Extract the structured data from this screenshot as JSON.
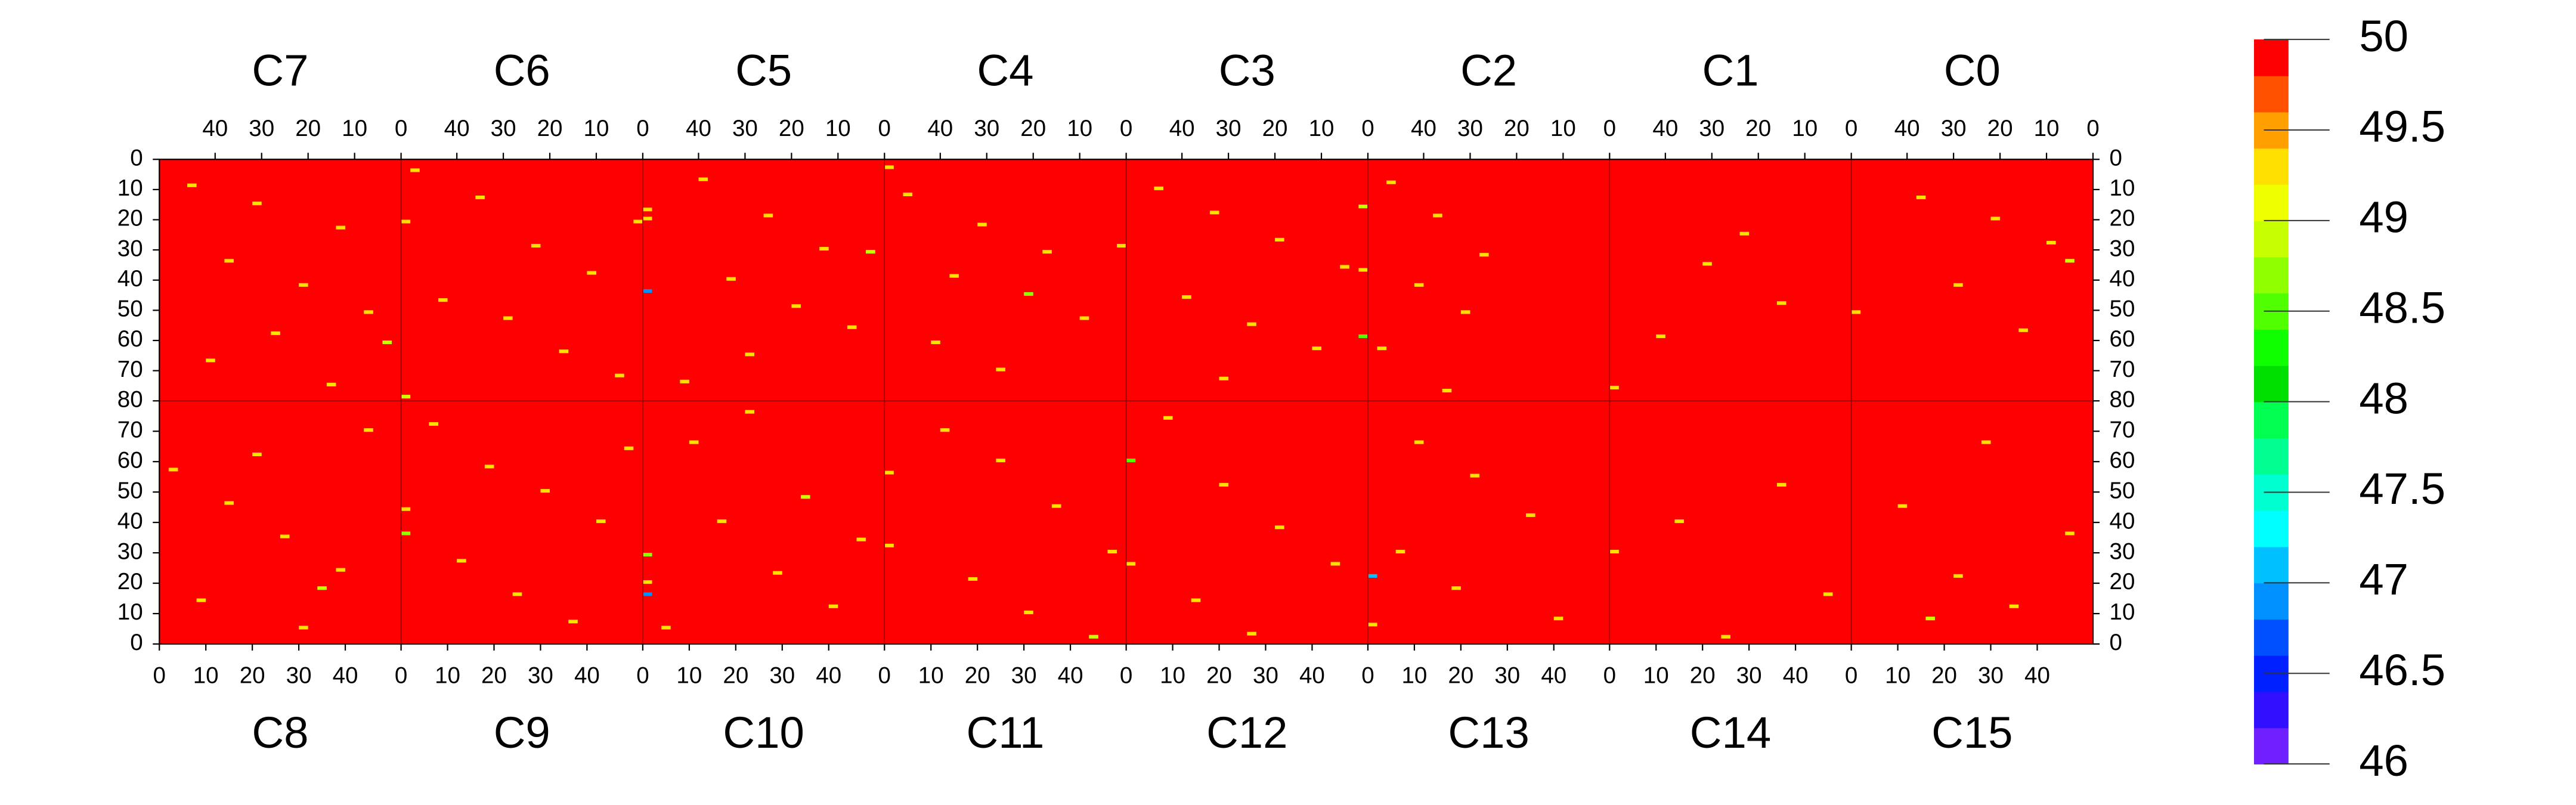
{
  "chart_data": {
    "type": "heatmap",
    "xlim": [
      0,
      52
    ],
    "ylim": [
      0,
      80
    ],
    "xticks_top": [
      40,
      30,
      20,
      10,
      0
    ],
    "xticks_bottom": [
      0,
      10,
      20,
      30,
      40
    ],
    "yticks_top": [
      0,
      10,
      20,
      30,
      40,
      50,
      60,
      70,
      80
    ],
    "yticks_bottom": [
      70,
      60,
      50,
      40,
      30,
      20,
      10,
      0
    ],
    "base_value": 50,
    "colorbar": {
      "lim": [
        46,
        50
      ],
      "ticks": [
        50,
        49.5,
        49,
        48.5,
        48,
        47.5,
        47,
        46.5,
        46
      ],
      "colors": [
        "#7020ff",
        "#3010ff",
        "#0020ff",
        "#0050ff",
        "#0090ff",
        "#00c0ff",
        "#00ffff",
        "#00ffd0",
        "#00ff90",
        "#00ff50",
        "#00e000",
        "#10ff00",
        "#50ff00",
        "#90ff00",
        "#c8ff00",
        "#f0ff00",
        "#ffe000",
        "#ffa000",
        "#ff5000",
        "#ff0000"
      ]
    },
    "modules": [
      {
        "name": "C7",
        "cells": [
          [
            44,
            8,
            49.3
          ],
          [
            30,
            14,
            49.3
          ],
          [
            12,
            22,
            49.3
          ],
          [
            36,
            33,
            49.3
          ],
          [
            20,
            41,
            49.3
          ],
          [
            6,
            50,
            49.3
          ],
          [
            26,
            57,
            49.3
          ],
          [
            40,
            66,
            49.3
          ],
          [
            14,
            74,
            49.3
          ],
          [
            2,
            60,
            48.9
          ]
        ]
      },
      {
        "name": "C6",
        "cells": [
          [
            48,
            3,
            49.3
          ],
          [
            50,
            20,
            49.3
          ],
          [
            34,
            12,
            49.3
          ],
          [
            22,
            28,
            49.3
          ],
          [
            10,
            37,
            49.3
          ],
          [
            42,
            46,
            49.3
          ],
          [
            28,
            52,
            49.3
          ],
          [
            16,
            63,
            49.3
          ],
          [
            4,
            71,
            49.3
          ],
          [
            50,
            78,
            48.9
          ],
          [
            0,
            20,
            49.3
          ]
        ]
      },
      {
        "name": "C5",
        "cells": [
          [
            50,
            16,
            49.3
          ],
          [
            50,
            19,
            49.3
          ],
          [
            50,
            43,
            46.9
          ],
          [
            38,
            6,
            49.3
          ],
          [
            24,
            18,
            49.3
          ],
          [
            12,
            29,
            49.3
          ],
          [
            32,
            39,
            49.3
          ],
          [
            18,
            48,
            49.3
          ],
          [
            6,
            55,
            49.3
          ],
          [
            28,
            64,
            49.3
          ],
          [
            42,
            73,
            49.3
          ],
          [
            2,
            30,
            48.9
          ]
        ]
      },
      {
        "name": "C4",
        "cells": [
          [
            50,
            2,
            49.3
          ],
          [
            46,
            11,
            49.3
          ],
          [
            30,
            21,
            49.3
          ],
          [
            16,
            30,
            49.3
          ],
          [
            36,
            38,
            49.3
          ],
          [
            20,
            44,
            48.7
          ],
          [
            8,
            52,
            49.3
          ],
          [
            40,
            60,
            49.3
          ],
          [
            26,
            69,
            49.3
          ],
          [
            0,
            28,
            49.3
          ]
        ]
      },
      {
        "name": "C3",
        "cells": [
          [
            44,
            9,
            49.3
          ],
          [
            32,
            17,
            49.3
          ],
          [
            18,
            26,
            49.3
          ],
          [
            4,
            35,
            49.3
          ],
          [
            38,
            45,
            49.3
          ],
          [
            24,
            54,
            49.3
          ],
          [
            10,
            62,
            49.3
          ],
          [
            30,
            72,
            49.3
          ],
          [
            0,
            15,
            48.9
          ],
          [
            0,
            36,
            49.3
          ],
          [
            0,
            58,
            48.5
          ]
        ]
      },
      {
        "name": "C2",
        "cells": [
          [
            46,
            7,
            49.3
          ],
          [
            36,
            18,
            49.3
          ],
          [
            26,
            31,
            49.3
          ],
          [
            40,
            41,
            49.3
          ],
          [
            30,
            50,
            49.3
          ],
          [
            48,
            62,
            49.3
          ],
          [
            34,
            76,
            49.3
          ]
        ]
      },
      {
        "name": "C1",
        "cells": [
          [
            22,
            24,
            49.3
          ],
          [
            30,
            34,
            49.3
          ],
          [
            14,
            47,
            49.3
          ],
          [
            40,
            58,
            49.3
          ],
          [
            50,
            75,
            49.3
          ]
        ]
      },
      {
        "name": "C0",
        "cells": [
          [
            50,
            50,
            49.3
          ],
          [
            36,
            12,
            49.3
          ],
          [
            20,
            19,
            49.3
          ],
          [
            8,
            27,
            49.3
          ],
          [
            28,
            41,
            49.3
          ],
          [
            14,
            56,
            49.3
          ],
          [
            4,
            33,
            48.9
          ]
        ]
      },
      {
        "name": "C8",
        "cells": [
          [
            2,
            57,
            49.3
          ],
          [
            14,
            46,
            49.3
          ],
          [
            26,
            35,
            49.3
          ],
          [
            38,
            24,
            49.3
          ],
          [
            8,
            14,
            49.3
          ],
          [
            30,
            5,
            49.3
          ],
          [
            44,
            70,
            49.3
          ],
          [
            20,
            62,
            49.3
          ],
          [
            34,
            18,
            48.9
          ]
        ]
      },
      {
        "name": "C9",
        "cells": [
          [
            0,
            36,
            48.7
          ],
          [
            0,
            44,
            49.3
          ],
          [
            6,
            72,
            49.3
          ],
          [
            18,
            58,
            49.3
          ],
          [
            30,
            50,
            49.3
          ],
          [
            42,
            40,
            49.3
          ],
          [
            12,
            27,
            49.3
          ],
          [
            24,
            16,
            49.3
          ],
          [
            36,
            7,
            49.3
          ],
          [
            48,
            64,
            49.3
          ]
        ]
      },
      {
        "name": "C10",
        "cells": [
          [
            0,
            20,
            49.3
          ],
          [
            0,
            29,
            48.7
          ],
          [
            0,
            16,
            46.9
          ],
          [
            10,
            66,
            49.3
          ],
          [
            22,
            76,
            49.3
          ],
          [
            34,
            48,
            48.9
          ],
          [
            46,
            34,
            49.3
          ],
          [
            16,
            40,
            49.3
          ],
          [
            28,
            23,
            49.3
          ],
          [
            40,
            12,
            49.3
          ],
          [
            4,
            5,
            49.3
          ]
        ]
      },
      {
        "name": "C11",
        "cells": [
          [
            0,
            56,
            49.3
          ],
          [
            0,
            32,
            49.3
          ],
          [
            12,
            70,
            49.3
          ],
          [
            24,
            60,
            49.3
          ],
          [
            36,
            45,
            49.3
          ],
          [
            48,
            30,
            49.3
          ],
          [
            18,
            21,
            49.3
          ],
          [
            30,
            10,
            49.3
          ],
          [
            44,
            2,
            48.9
          ]
        ]
      },
      {
        "name": "C12",
        "cells": [
          [
            0,
            60,
            48.5
          ],
          [
            0,
            26,
            49.3
          ],
          [
            8,
            74,
            49.3
          ],
          [
            20,
            52,
            49.3
          ],
          [
            32,
            38,
            49.3
          ],
          [
            44,
            26,
            49.3
          ],
          [
            14,
            14,
            49.3
          ],
          [
            26,
            3,
            49.3
          ]
        ]
      },
      {
        "name": "C13",
        "cells": [
          [
            0,
            22,
            47.1
          ],
          [
            0,
            6,
            49.3
          ],
          [
            10,
            66,
            49.3
          ],
          [
            22,
            55,
            49.3
          ],
          [
            34,
            42,
            49.3
          ],
          [
            6,
            30,
            49.3
          ],
          [
            18,
            18,
            49.3
          ],
          [
            40,
            8,
            49.3
          ]
        ]
      },
      {
        "name": "C14",
        "cells": [
          [
            0,
            30,
            49.3
          ],
          [
            24,
            2,
            49.3
          ],
          [
            14,
            40,
            49.3
          ],
          [
            36,
            52,
            49.3
          ],
          [
            46,
            16,
            49.3
          ]
        ]
      },
      {
        "name": "C15",
        "cells": [
          [
            10,
            45,
            49.3
          ],
          [
            22,
            22,
            49.3
          ],
          [
            34,
            12,
            49.3
          ],
          [
            46,
            36,
            49.3
          ],
          [
            28,
            66,
            49.3
          ],
          [
            16,
            8,
            48.9
          ]
        ]
      }
    ]
  }
}
